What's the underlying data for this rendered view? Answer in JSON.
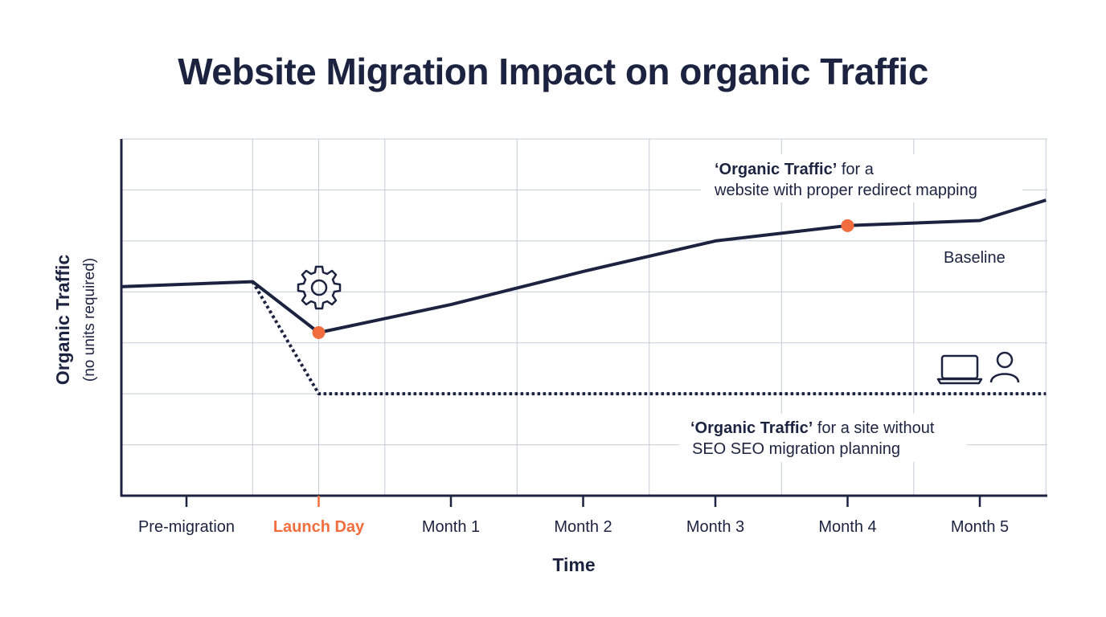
{
  "title": "Website Migration Impact on organic Traffic",
  "chart_data": {
    "type": "line",
    "title": "Website Migration Impact on organic Traffic",
    "xlabel": "Time",
    "ylabel": "Organic Traffic",
    "ylabel_note": "(no units required)",
    "categories": [
      "Pre-migration",
      "Launch Day",
      "Month 1",
      "Month 2",
      "Month 3",
      "Month 4",
      "Month 5"
    ],
    "highlight_category": "Launch Day",
    "ylim": [
      0,
      7
    ],
    "grid": true,
    "series": [
      {
        "style": "solid",
        "color": "#1c2340",
        "points": [
          {
            "x": -0.5,
            "y": 4.1
          },
          {
            "x": 0.5,
            "y": 4.2
          },
          {
            "x": 1.0,
            "y": 3.2
          },
          {
            "x": 2.0,
            "y": 3.75
          },
          {
            "x": 3.0,
            "y": 4.4
          },
          {
            "x": 4.0,
            "y": 5.0
          },
          {
            "x": 5.0,
            "y": 5.3
          },
          {
            "x": 6.0,
            "y": 5.4
          },
          {
            "x": 6.5,
            "y": 5.8
          }
        ],
        "markers": [
          {
            "x": 1.0,
            "y": 3.2
          },
          {
            "x": 5.0,
            "y": 5.3
          }
        ]
      },
      {
        "style": "dotted",
        "color": "#1c2340",
        "points": [
          {
            "x": 0.5,
            "y": 4.2
          },
          {
            "x": 1.0,
            "y": 2.0
          },
          {
            "x": 6.5,
            "y": 2.0
          }
        ]
      }
    ],
    "marker_color": "#f26d3d",
    "annotations": {
      "proper": {
        "bold": "‘Organic Traffic’",
        "rest": " for a",
        "line2": "website with proper redirect mapping"
      },
      "baseline": "Baseline",
      "without": {
        "bold": "‘Organic Traffic’",
        "rest": " for a site without",
        "line2": "SEO SEO migration planning"
      }
    },
    "icons": [
      "gear-icon",
      "laptop-icon",
      "user-icon"
    ]
  }
}
